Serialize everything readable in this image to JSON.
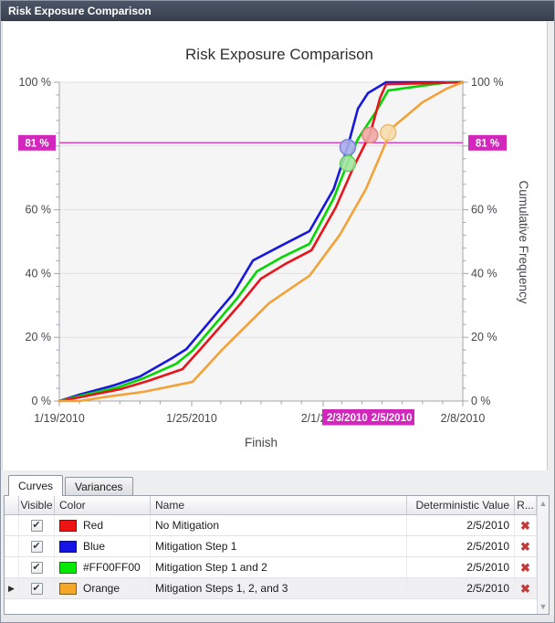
{
  "window": {
    "title": "Risk Exposure Comparison"
  },
  "chart_data": {
    "type": "line",
    "title": "Risk Exposure Comparison",
    "xlabel": "Finish",
    "ylabel_right": "Cumulative Frequency",
    "ylim": [
      0,
      100
    ],
    "grid": true,
    "y_major_ticks": [
      0,
      20,
      40,
      60,
      80,
      100
    ],
    "y_tick_labels": [
      "0 %",
      "20 %",
      "40 %",
      "60 %",
      "80 %",
      "100 %"
    ],
    "x_ticks": [
      {
        "d": 0,
        "label": "1/19/2010"
      },
      {
        "d": 6.56,
        "label": "1/25/2010"
      },
      {
        "d": 13.08,
        "label": "2/1/2010"
      },
      {
        "d": 20,
        "label": "2/8/2010"
      }
    ],
    "x_unit": "days since 1/19/2010",
    "threshold": {
      "percent": 81,
      "label": "81 %",
      "line_color": "#d944ca",
      "box_color": "#d226bd"
    },
    "date_flags": [
      {
        "label": "2/3/2010"
      },
      {
        "label": "2/5/2010"
      }
    ],
    "series": [
      {
        "key": "blue",
        "name": "Mitigation Step 1",
        "color": "#1717dd",
        "points": [
          [
            0,
            0
          ],
          [
            1.0,
            2
          ],
          [
            2.7,
            4.9
          ],
          [
            4.0,
            7.7
          ],
          [
            5.6,
            13.5
          ],
          [
            6.3,
            16.3
          ],
          [
            8.6,
            33.5
          ],
          [
            9.6,
            44.1
          ],
          [
            10.9,
            48.4
          ],
          [
            12.4,
            53.3
          ],
          [
            13.6,
            66.5
          ],
          [
            14.3,
            79.9
          ],
          [
            14.8,
            91.7
          ],
          [
            15.3,
            96.6
          ],
          [
            16.2,
            100
          ],
          [
            20,
            100
          ]
        ],
        "marker": {
          "d": 14.3,
          "p": 79.6,
          "fill": "#a9aeea",
          "stroke": "#7d84d8"
        }
      },
      {
        "key": "green",
        "name": "Mitigation Step 1 and 2",
        "color": "#04d604",
        "points": [
          [
            0,
            0
          ],
          [
            1.1,
            1.7
          ],
          [
            2.9,
            4.3
          ],
          [
            4.2,
            7.2
          ],
          [
            5.8,
            11.7
          ],
          [
            6.6,
            15.8
          ],
          [
            8.8,
            32.1
          ],
          [
            9.8,
            40.7
          ],
          [
            11.0,
            45.0
          ],
          [
            12.4,
            49.3
          ],
          [
            13.6,
            63.6
          ],
          [
            14.3,
            74.8
          ],
          [
            14.8,
            82.2
          ],
          [
            15.7,
            90.8
          ],
          [
            16.3,
            97.4
          ],
          [
            18.0,
            98.9
          ],
          [
            19.3,
            100
          ],
          [
            20,
            100
          ]
        ],
        "marker": {
          "d": 14.3,
          "p": 74.5,
          "fill": "#a4e6a0",
          "stroke": "#66cf66"
        }
      },
      {
        "key": "red",
        "name": "No Mitigation",
        "color": "#e8141c",
        "points": [
          [
            0,
            0
          ],
          [
            1.2,
            1.4
          ],
          [
            3.0,
            3.7
          ],
          [
            4.4,
            6.3
          ],
          [
            6.1,
            10.0
          ],
          [
            7.0,
            16.3
          ],
          [
            9.0,
            30.7
          ],
          [
            10.0,
            38.4
          ],
          [
            11.2,
            43.0
          ],
          [
            12.5,
            47.3
          ],
          [
            13.7,
            60.7
          ],
          [
            14.6,
            73.6
          ],
          [
            15.4,
            83.7
          ],
          [
            15.9,
            95.1
          ],
          [
            16.2,
            99.4
          ],
          [
            18.4,
            99.7
          ],
          [
            20,
            100
          ]
        ],
        "marker": {
          "d": 15.4,
          "p": 83.4,
          "fill": "#f0aaa6",
          "stroke": "#e4837d"
        }
      },
      {
        "key": "orange",
        "name": "Mitigation Steps 1, 2, and 3",
        "color": "#f2a237",
        "points": [
          [
            0,
            0
          ],
          [
            1.0,
            0
          ],
          [
            2.4,
            1.4
          ],
          [
            4.2,
            2.9
          ],
          [
            6.6,
            6.0
          ],
          [
            8.1,
            16.3
          ],
          [
            10.4,
            30.7
          ],
          [
            12.4,
            39.3
          ],
          [
            13.9,
            52.1
          ],
          [
            15.2,
            66.5
          ],
          [
            16.5,
            85.7
          ],
          [
            18.0,
            93.7
          ],
          [
            19.2,
            98.0
          ],
          [
            20,
            100
          ]
        ],
        "marker": {
          "d": 16.3,
          "p": 84.2,
          "fill": "#f7dcae",
          "stroke": "#ecba6b"
        }
      }
    ]
  },
  "tabs": [
    {
      "label": "Curves",
      "active": true
    },
    {
      "label": "Variances",
      "active": false
    }
  ],
  "table": {
    "headers": {
      "visible": "Visible",
      "color": "Color",
      "name": "Name",
      "deterministic": "Deterministic Value",
      "remove": "R..."
    },
    "rows": [
      {
        "visible": true,
        "color": "#ee1414",
        "color_name": "Red",
        "name": "No Mitigation",
        "deterministic": "2/5/2010",
        "selected": false
      },
      {
        "visible": true,
        "color": "#1414e8",
        "color_name": "Blue",
        "name": "Mitigation Step 1",
        "deterministic": "2/5/2010",
        "selected": false
      },
      {
        "visible": true,
        "color": "#04e804",
        "color_name": "#FF00FF00",
        "name": "Mitigation Step 1 and 2",
        "deterministic": "2/5/2010",
        "selected": false
      },
      {
        "visible": true,
        "color": "#f5a728",
        "color_name": "Orange",
        "name": "Mitigation Steps 1, 2, and 3",
        "deterministic": "2/5/2010",
        "selected": true
      }
    ],
    "check_glyph": "✔",
    "remove_glyph": "✖",
    "row_arrow_glyph": "▶",
    "scroll_up_glyph": "▲",
    "scroll_down_glyph": "▼"
  }
}
